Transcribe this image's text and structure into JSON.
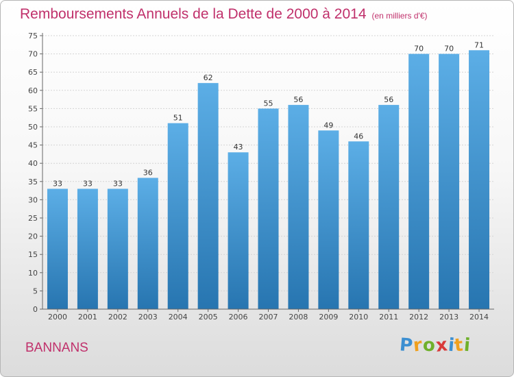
{
  "title": "Remboursements Annuels de la Dette de 2000 à 2014",
  "subtitle": "(en milliers d'€)",
  "commune": "BANNANS",
  "logo": {
    "letters": [
      "P",
      "r",
      "o",
      "x",
      "i",
      "t",
      "i"
    ],
    "colors": [
      "#3c8fd1",
      "#f0a01e",
      "#6fb02b",
      "#d93a3a",
      "#3c8fd1",
      "#f0a01e",
      "#6fb02b"
    ]
  },
  "colors": {
    "bar_top": "#5caee6",
    "bar_bottom": "#2775b0",
    "title": "#c0306b"
  },
  "chart_data": {
    "type": "bar",
    "title": "Remboursements Annuels de la Dette de 2000 à 2014",
    "xlabel": "",
    "ylabel": "",
    "ylim": [
      0,
      75
    ],
    "yticks": [
      0,
      5,
      10,
      15,
      20,
      25,
      30,
      35,
      40,
      45,
      50,
      55,
      60,
      65,
      70,
      75
    ],
    "grid": true,
    "categories": [
      "2000",
      "2001",
      "2002",
      "2003",
      "2004",
      "2005",
      "2006",
      "2007",
      "2008",
      "2009",
      "2010",
      "2011",
      "2012",
      "2013",
      "2014"
    ],
    "values": [
      33,
      33,
      33,
      36,
      51,
      62,
      43,
      55,
      56,
      49,
      46,
      56,
      70,
      70,
      71
    ]
  }
}
